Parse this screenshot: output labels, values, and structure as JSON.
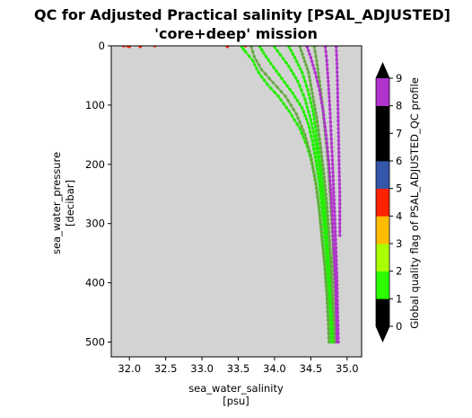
{
  "chart_data": {
    "type": "scatter",
    "title": "QC for Adjusted Practical salinity [PSAL_ADJUSTED]",
    "subtitle": "'core+deep' mission",
    "xlabel": "sea_water_salinity",
    "xlabel_unit": "[psu]",
    "ylabel": "sea_water_pressure",
    "ylabel_unit": "[decibar]",
    "xlim": [
      31.75,
      35.2
    ],
    "ylim": [
      525,
      0
    ],
    "y_inverted": true,
    "xticks": [
      32.0,
      32.5,
      33.0,
      33.5,
      34.0,
      34.5,
      35.0
    ],
    "xtick_labels": [
      "32.0",
      "32.5",
      "33.0",
      "33.5",
      "34.0",
      "34.5",
      "35.0"
    ],
    "yticks": [
      0,
      100,
      200,
      300,
      400,
      500
    ],
    "ytick_labels": [
      "0",
      "100",
      "200",
      "300",
      "400",
      "500"
    ],
    "plot_background": "#d3d3d3",
    "grid": false,
    "colorbar": {
      "label": "Global quality flag of PSAL_ADJUSTED_QC profile",
      "range": [
        0,
        9
      ],
      "ticks": [
        0,
        1,
        2,
        3,
        4,
        5,
        6,
        7,
        8,
        9
      ],
      "tick_labels": [
        "0",
        "1",
        "2",
        "3",
        "4",
        "5",
        "6",
        "7",
        "8",
        "9"
      ],
      "extend": "both",
      "colors": [
        "#000000",
        "#2bff00",
        "#aaff00",
        "#ffbb00",
        "#ff2200",
        "#3355aa",
        "#000000",
        "#000000",
        "#b033cc"
      ]
    },
    "series": [
      {
        "flag": 1,
        "color": "#22ee00",
        "profiles": [
          [
            [
              33.55,
              2
            ],
            [
              33.6,
              10
            ],
            [
              33.7,
              25
            ],
            [
              33.78,
              45
            ],
            [
              33.9,
              65
            ],
            [
              34.05,
              85
            ],
            [
              34.2,
              110
            ],
            [
              34.35,
              140
            ],
            [
              34.45,
              170
            ],
            [
              34.52,
              200
            ],
            [
              34.58,
              240
            ],
            [
              34.62,
              280
            ],
            [
              34.66,
              330
            ],
            [
              34.7,
              380
            ],
            [
              34.73,
              430
            ],
            [
              34.75,
              470
            ],
            [
              34.76,
              500
            ]
          ],
          [
            [
              33.8,
              2
            ],
            [
              33.85,
              12
            ],
            [
              33.95,
              30
            ],
            [
              34.1,
              55
            ],
            [
              34.25,
              80
            ],
            [
              34.38,
              105
            ],
            [
              34.46,
              130
            ],
            [
              34.52,
              160
            ],
            [
              34.57,
              195
            ],
            [
              34.62,
              235
            ],
            [
              34.66,
              280
            ],
            [
              34.7,
              330
            ],
            [
              34.73,
              380
            ],
            [
              34.76,
              430
            ],
            [
              34.78,
              470
            ],
            [
              34.79,
              500
            ]
          ],
          [
            [
              34.0,
              2
            ],
            [
              34.08,
              15
            ],
            [
              34.2,
              35
            ],
            [
              34.32,
              60
            ],
            [
              34.42,
              90
            ],
            [
              34.5,
              125
            ],
            [
              34.56,
              160
            ],
            [
              34.61,
              200
            ],
            [
              34.65,
              245
            ],
            [
              34.69,
              290
            ],
            [
              34.72,
              340
            ],
            [
              34.75,
              390
            ],
            [
              34.78,
              440
            ],
            [
              34.8,
              480
            ],
            [
              34.81,
              500
            ]
          ],
          [
            [
              34.2,
              2
            ],
            [
              34.28,
              20
            ],
            [
              34.38,
              45
            ],
            [
              34.46,
              75
            ],
            [
              34.53,
              110
            ],
            [
              34.58,
              150
            ],
            [
              34.63,
              195
            ],
            [
              34.67,
              240
            ],
            [
              34.71,
              290
            ],
            [
              34.74,
              340
            ],
            [
              34.77,
              390
            ],
            [
              34.79,
              440
            ],
            [
              34.81,
              500
            ]
          ]
        ]
      },
      {
        "flag": 2,
        "color": "#66aa44",
        "profiles": [
          [
            [
              33.68,
              2
            ],
            [
              33.72,
              18
            ],
            [
              33.82,
              40
            ],
            [
              33.98,
              62
            ],
            [
              34.15,
              85
            ],
            [
              34.3,
              115
            ],
            [
              34.42,
              150
            ],
            [
              34.5,
              185
            ],
            [
              34.56,
              225
            ],
            [
              34.61,
              270
            ],
            [
              34.65,
              320
            ],
            [
              34.69,
              370
            ],
            [
              34.72,
              420
            ],
            [
              34.74,
              470
            ],
            [
              34.75,
              500
            ]
          ],
          [
            [
              34.35,
              2
            ],
            [
              34.4,
              20
            ],
            [
              34.47,
              45
            ],
            [
              34.52,
              80
            ],
            [
              34.58,
              120
            ],
            [
              34.63,
              165
            ],
            [
              34.68,
              215
            ],
            [
              34.72,
              265
            ],
            [
              34.75,
              315
            ],
            [
              34.78,
              365
            ],
            [
              34.8,
              420
            ],
            [
              34.82,
              470
            ],
            [
              34.83,
              500
            ]
          ],
          [
            [
              34.55,
              2
            ],
            [
              34.58,
              25
            ],
            [
              34.62,
              60
            ],
            [
              34.66,
              100
            ],
            [
              34.7,
              150
            ],
            [
              34.74,
              200
            ],
            [
              34.77,
              260
            ],
            [
              34.8,
              320
            ],
            [
              34.82,
              380
            ],
            [
              34.84,
              440
            ],
            [
              34.85,
              500
            ]
          ]
        ]
      },
      {
        "flag": 8,
        "color": "#b033cc",
        "profiles": [
          [
            [
              34.45,
              2
            ],
            [
              34.5,
              20
            ],
            [
              34.56,
              45
            ],
            [
              34.62,
              75
            ],
            [
              34.67,
              110
            ],
            [
              34.71,
              150
            ],
            [
              34.75,
              200
            ],
            [
              34.78,
              250
            ],
            [
              34.8,
              300
            ],
            [
              34.82,
              350
            ],
            [
              34.84,
              400
            ],
            [
              34.85,
              450
            ],
            [
              34.86,
              500
            ]
          ],
          [
            [
              34.7,
              2
            ],
            [
              34.72,
              25
            ],
            [
              34.74,
              60
            ],
            [
              34.76,
              100
            ],
            [
              34.78,
              150
            ],
            [
              34.8,
              200
            ],
            [
              34.82,
              260
            ],
            [
              34.84,
              320
            ],
            [
              34.86,
              390
            ],
            [
              34.87,
              450
            ],
            [
              34.88,
              500
            ]
          ],
          [
            [
              34.85,
              2
            ],
            [
              34.86,
              30
            ],
            [
              34.87,
              80
            ],
            [
              34.88,
              140
            ],
            [
              34.89,
              200
            ],
            [
              34.9,
              260
            ],
            [
              34.9,
              320
            ]
          ]
        ]
      },
      {
        "flag": 4,
        "color": "#ff2200",
        "points": [
          [
            31.92,
            0
          ],
          [
            31.97,
            0
          ],
          [
            32.0,
            1
          ],
          [
            32.15,
            1
          ],
          [
            32.35,
            0
          ],
          [
            33.35,
            1
          ],
          [
            33.6,
            0
          ]
        ]
      }
    ]
  }
}
